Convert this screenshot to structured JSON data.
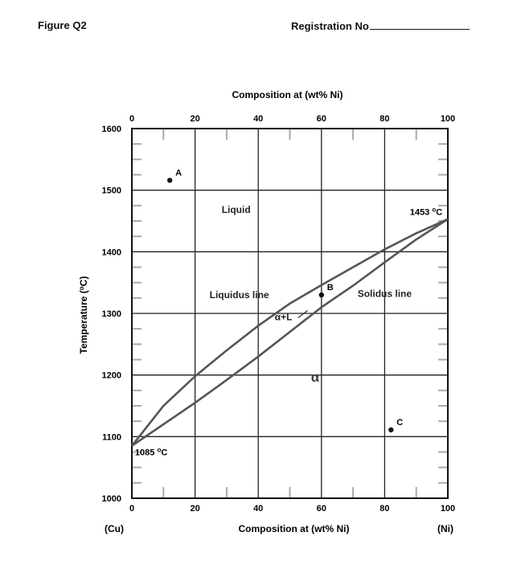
{
  "header": {
    "figure_label": "Figure Q2",
    "registration_label": "Registration No"
  },
  "chart_data": {
    "type": "line",
    "title": "",
    "x_top_label": "Composition at (wt% Ni)",
    "x_bottom_label": "Composition at (wt% Ni)",
    "ylabel": "Temperature (°C)",
    "ylabel_parts": {
      "pre": "Temperature (",
      "sup": "o",
      "post": "C)"
    },
    "x_ticks": [
      0,
      20,
      40,
      60,
      80,
      100
    ],
    "y_ticks": [
      1000,
      1100,
      1200,
      1300,
      1400,
      1500,
      1600
    ],
    "xlim": [
      0,
      100
    ],
    "ylim": [
      1000,
      1600
    ],
    "grid": true,
    "left_end_label": "(Cu)",
    "right_end_label": "(Ni)",
    "series": [
      {
        "name": "Liquidus line",
        "x": [
          0,
          10,
          20,
          30,
          40,
          50,
          60,
          70,
          80,
          90,
          100
        ],
        "y": [
          1085,
          1150,
          1198,
          1240,
          1280,
          1316,
          1346,
          1375,
          1404,
          1430,
          1453
        ]
      },
      {
        "name": "Solidus line",
        "x": [
          0,
          10,
          20,
          30,
          40,
          50,
          60,
          70,
          80,
          90,
          100
        ],
        "y": [
          1085,
          1120,
          1155,
          1192,
          1230,
          1270,
          1310,
          1345,
          1383,
          1420,
          1453
        ]
      }
    ],
    "points": [
      {
        "label": "A",
        "x": 12,
        "y": 1516
      },
      {
        "label": "B",
        "x": 60,
        "y": 1330
      },
      {
        "label": "C",
        "x": 82,
        "y": 1111
      }
    ],
    "region_labels": [
      {
        "text": "Liquid",
        "x": 33,
        "y": 1463
      },
      {
        "text": "Liquidus line",
        "x": 34,
        "y": 1325
      },
      {
        "text": "Solidus line",
        "x": 80,
        "y": 1327
      },
      {
        "text": "α+L",
        "x": 48,
        "y": 1289
      },
      {
        "text": "α",
        "x": 58,
        "y": 1189
      }
    ],
    "temp_labels": [
      {
        "value": "1453",
        "x": 88,
        "y": 1460
      },
      {
        "value": "1085",
        "x": 1,
        "y": 1070
      }
    ],
    "temp_unit_parts": {
      "sup": "o",
      "unit": "C"
    }
  }
}
